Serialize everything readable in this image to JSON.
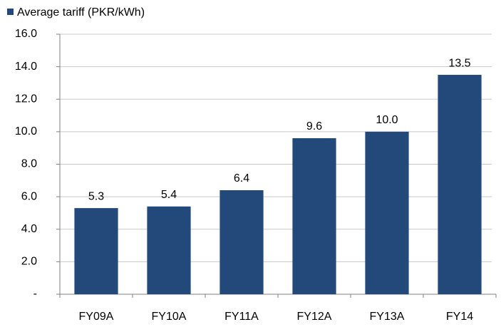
{
  "chart_data": {
    "type": "bar",
    "categories": [
      "FY09A",
      "FY10A",
      "FY11A",
      "FY12A",
      "FY13A",
      "FY14"
    ],
    "series": [
      {
        "name": "Average tariff (PKR/kWh)",
        "color": "#23497b",
        "values": [
          5.3,
          5.4,
          6.4,
          9.6,
          10.0,
          13.5
        ],
        "value_labels": [
          "5.3",
          "5.4",
          "6.4",
          "9.6",
          "10.0",
          "13.5"
        ]
      }
    ],
    "ylim": [
      0,
      16
    ],
    "yticks": [
      {
        "value": 0,
        "label": "-"
      },
      {
        "value": 2,
        "label": "2.0"
      },
      {
        "value": 4,
        "label": "4.0"
      },
      {
        "value": 6,
        "label": "6.0"
      },
      {
        "value": 8,
        "label": "8.0"
      },
      {
        "value": 10,
        "label": "10.0"
      },
      {
        "value": 12,
        "label": "12.0"
      },
      {
        "value": 14,
        "label": "14.0"
      },
      {
        "value": 16,
        "label": "16.0"
      }
    ],
    "grid": true,
    "legend": "top-left"
  }
}
